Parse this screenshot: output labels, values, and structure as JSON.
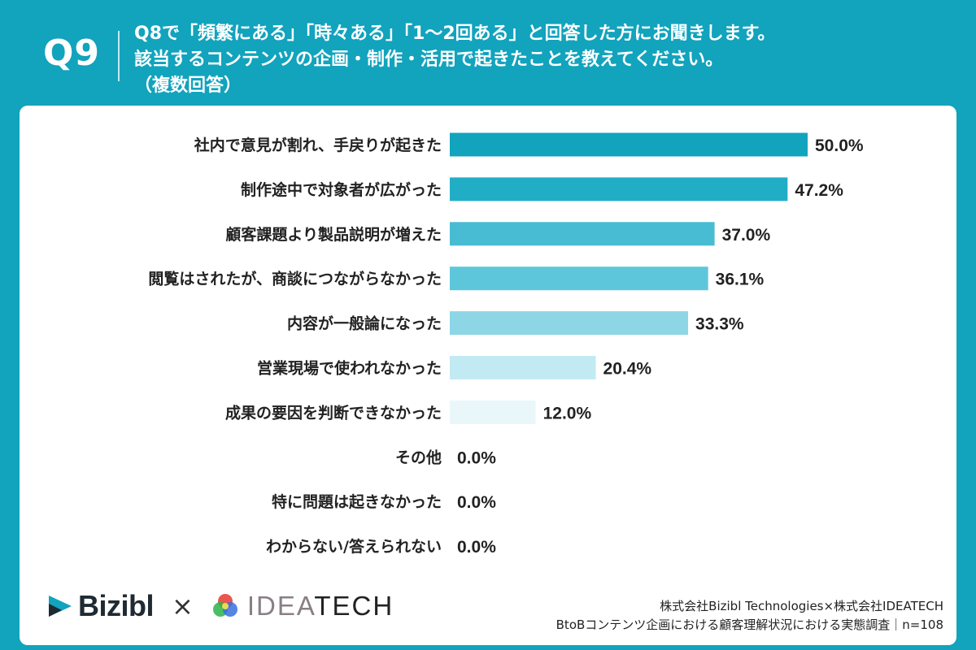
{
  "header": {
    "question_number": "Q9",
    "question_line1": "Q8で「頻繁にある」「時々ある」「1〜2回ある」と回答した方にお聞きします。",
    "question_line2": "該当するコンテンツの企画・制作・活用で起きたことを教えてください。",
    "question_line3": "（複数回答）"
  },
  "chart_data": {
    "type": "bar",
    "orientation": "horizontal",
    "categories": [
      "社内で意見が割れ、手戻りが起きた",
      "制作途中で対象者が広がった",
      "顧客課題より製品説明が増えた",
      "閲覧はされたが、商談につながらなかった",
      "内容が一般論になった",
      "営業現場で使われなかった",
      "成果の要因を判断できなかった",
      "その他",
      "特に問題は起きなかった",
      "わからない/答えられない"
    ],
    "values": [
      50.0,
      47.2,
      37.0,
      36.1,
      33.3,
      20.4,
      12.0,
      0.0,
      0.0,
      0.0
    ],
    "value_labels": [
      "50.0%",
      "47.2%",
      "37.0%",
      "36.1%",
      "33.3%",
      "20.4%",
      "12.0%",
      "0.0%",
      "0.0%",
      "0.0%"
    ],
    "bar_colors": [
      "#12a3bd",
      "#22adc6",
      "#48bcd3",
      "#5ec6db",
      "#8dd6e6",
      "#c2eaf2",
      "#e9f7fa",
      "#ffffff",
      "#ffffff",
      "#ffffff"
    ],
    "xlim": [
      0,
      50
    ]
  },
  "footer": {
    "bizibl_logo": "Bizibl",
    "times_sign": "×",
    "ideatech_logo_light": "IDEA",
    "ideatech_logo_dark": "TECH",
    "credit_line1": "株式会社Bizibl Technologies×株式会社IDEATECH",
    "credit_line2": "BtoBコンテンツ企画における顧客理解状況における実態調査｜n=108"
  },
  "colors": {
    "background": "#12a3bd",
    "card": "#ffffff",
    "text": "#222222"
  }
}
